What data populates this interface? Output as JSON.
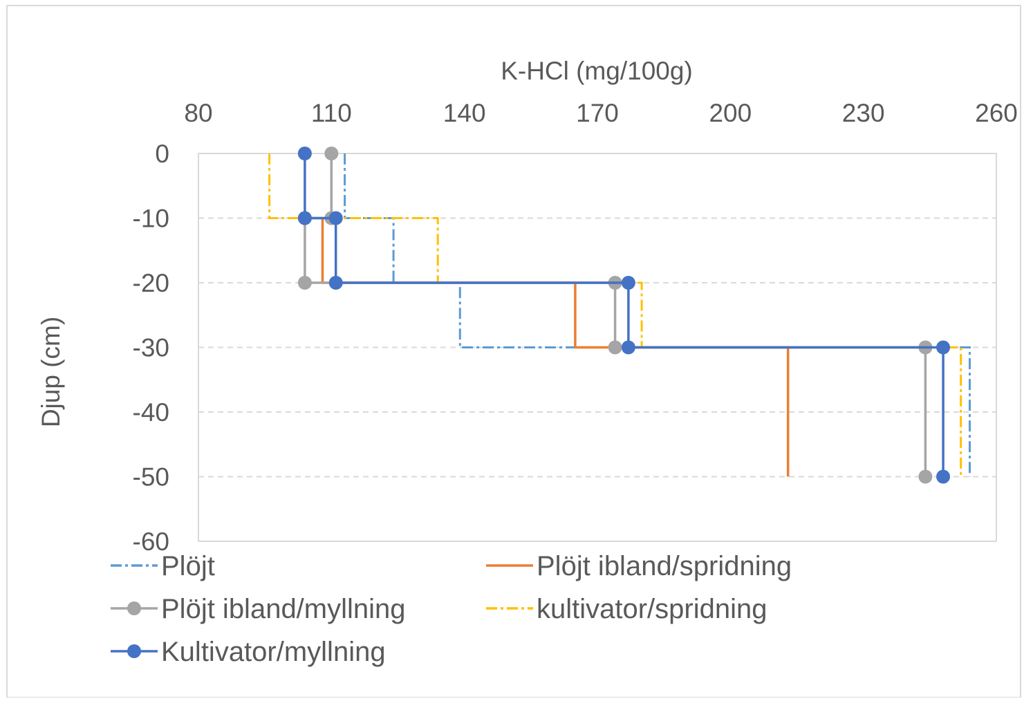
{
  "chart_data": {
    "type": "line",
    "title": "",
    "xlabel": "K-HCl (mg/100g)",
    "ylabel": "Djup (cm)",
    "xlim": [
      80,
      260
    ],
    "ylim": [
      -60,
      0
    ],
    "x_ticks": [
      "80",
      "110",
      "140",
      "170",
      "200",
      "230",
      "260"
    ],
    "y_ticks": [
      "0",
      "-10",
      "-20",
      "-30",
      "-40",
      "-50",
      "-60"
    ],
    "x_axis_position": "top",
    "grid": {
      "horizontal": true,
      "style": "dashed"
    },
    "legend": "bottom",
    "series": [
      {
        "name": "Plöjt",
        "color": "#5B9BD5",
        "dashed": true,
        "markers": false,
        "points": [
          [
            113,
            0
          ],
          [
            113,
            -10
          ],
          [
            124,
            -10
          ],
          [
            124,
            -20
          ],
          [
            139,
            -20
          ],
          [
            139,
            -30
          ],
          [
            254,
            -30
          ],
          [
            254,
            -50
          ]
        ]
      },
      {
        "name": "Plöjt ibland/spridning",
        "color": "#ED7D31",
        "dashed": false,
        "markers": false,
        "points": [
          [
            108,
            -10
          ],
          [
            108,
            -20
          ],
          [
            165,
            -20
          ],
          [
            165,
            -30
          ],
          [
            213,
            -30
          ],
          [
            213,
            -50
          ]
        ]
      },
      {
        "name": "Plöjt ibland/myllning",
        "color": "#A5A5A5",
        "dashed": false,
        "markers": true,
        "points": [
          [
            110,
            0
          ],
          [
            110,
            -10
          ],
          [
            104,
            -10
          ],
          [
            104,
            -20
          ],
          [
            174,
            -20
          ],
          [
            174,
            -30
          ],
          [
            244,
            -30
          ],
          [
            244,
            -50
          ]
        ]
      },
      {
        "name": "kultivator/spridning",
        "color": "#FFC000",
        "dashed": true,
        "markers": false,
        "points": [
          [
            96,
            0
          ],
          [
            96,
            -10
          ],
          [
            134,
            -10
          ],
          [
            134,
            -20
          ],
          [
            180,
            -20
          ],
          [
            180,
            -30
          ],
          [
            252,
            -30
          ],
          [
            252,
            -50
          ]
        ]
      },
      {
        "name": "Kultivator/myllning",
        "color": "#4472C4",
        "dashed": false,
        "markers": true,
        "points": [
          [
            104,
            0
          ],
          [
            104,
            -10
          ],
          [
            111,
            -10
          ],
          [
            111,
            -20
          ],
          [
            177,
            -20
          ],
          [
            177,
            -30
          ],
          [
            248,
            -30
          ],
          [
            248,
            -50
          ]
        ]
      }
    ]
  }
}
